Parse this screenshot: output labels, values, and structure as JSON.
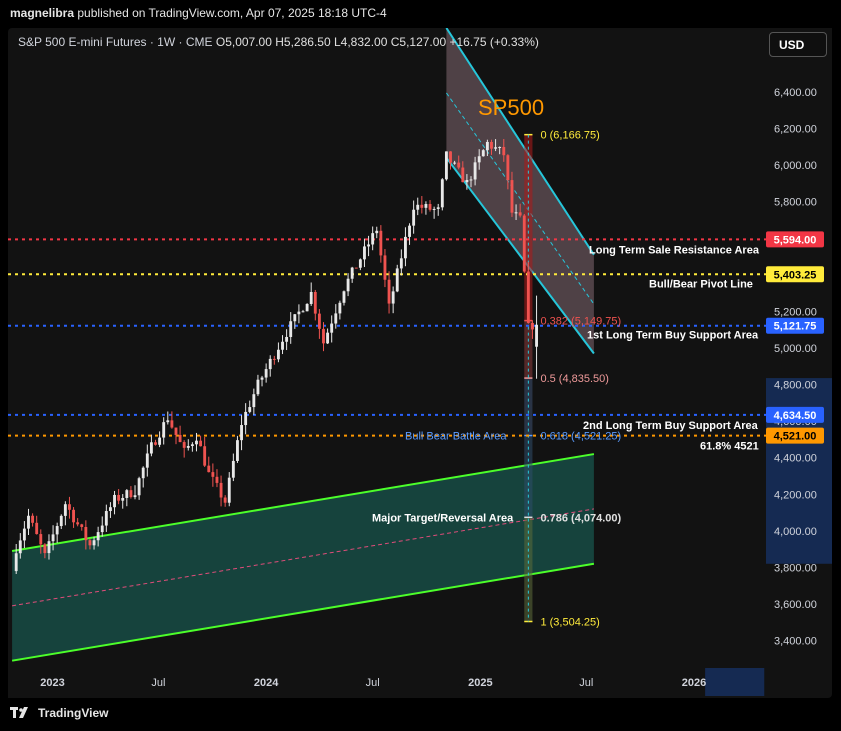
{
  "header": {
    "publisher": "magnelibra",
    "published_text": "published on TradingView.com, Apr 07, 2025 18:18 UTC-4"
  },
  "symbol_line": {
    "name": "S&P 500 E-mini Futures · 1W · CME",
    "o_label": "O",
    "o_value": "5,007.00",
    "h_label": "H",
    "h_value": "5,286.50",
    "l_label": "L",
    "l_value": "4,832.00",
    "c_label": "C",
    "c_value": "5,127.00",
    "change": "+16.75 (+0.33%)"
  },
  "currency_button": "USD",
  "footer": {
    "brand": "TradingView"
  },
  "colors": {
    "up": "#e8e8e8",
    "down": "#ef5350",
    "channel": "#26c6da",
    "green_line": "#4cff2a",
    "red_level": "#f23645",
    "yellow_level": "#ffeb3b",
    "blue_level": "#2962ff",
    "orange_level": "#ff9800",
    "title": "#ff9800"
  },
  "chart_data": {
    "type": "candlestick",
    "title": "SP500",
    "interval": "1W",
    "y_axis": {
      "range": [
        3250,
        6750
      ],
      "ticks": [
        "3,400.00",
        "3,600.00",
        "3,800.00",
        "4,000.00",
        "4,200.00",
        "4,400.00",
        "4,600.00",
        "4,800.00",
        "5,000.00",
        "5,200.00",
        "5,400.00",
        "5,600.00",
        "5,800.00",
        "6,000.00",
        "6,200.00",
        "6,400.00"
      ],
      "tick_values": [
        3400,
        3600,
        3800,
        4000,
        4200,
        4400,
        4600,
        4800,
        5000,
        5200,
        5400,
        5600,
        5800,
        6000,
        6200,
        6400
      ],
      "position": "right"
    },
    "x_axis": {
      "range": [
        "2022-10-17",
        "2026-05-04"
      ],
      "ticks": [
        "2023",
        "Jul",
        "2024",
        "Jul",
        "2025",
        "Jul",
        "2026"
      ],
      "tick_dates": [
        "2023-01-01",
        "2023-07-01",
        "2024-01-01",
        "2024-07-01",
        "2025-01-01",
        "2025-07-01",
        "2026-01-01"
      ]
    },
    "ohlc_last": {
      "open": 5007.0,
      "high": 5286.5,
      "low": 4832.0,
      "close": 5127.0,
      "change": 16.75,
      "change_pct": 0.33
    },
    "close_path": [
      {
        "date": "2022-10-31",
        "close": 3850
      },
      {
        "date": "2022-11-28",
        "close": 4080
      },
      {
        "date": "2022-12-26",
        "close": 3860
      },
      {
        "date": "2023-01-30",
        "close": 4150
      },
      {
        "date": "2023-03-13",
        "close": 3920
      },
      {
        "date": "2023-04-24",
        "close": 4170
      },
      {
        "date": "2023-05-29",
        "close": 4220
      },
      {
        "date": "2023-06-26",
        "close": 4460
      },
      {
        "date": "2023-07-24",
        "close": 4620
      },
      {
        "date": "2023-08-21",
        "close": 4430
      },
      {
        "date": "2023-09-11",
        "close": 4520
      },
      {
        "date": "2023-10-02",
        "close": 4310
      },
      {
        "date": "2023-10-30",
        "close": 4160
      },
      {
        "date": "2023-11-27",
        "close": 4590
      },
      {
        "date": "2023-12-25",
        "close": 4800
      },
      {
        "date": "2024-02-05",
        "close": 5050
      },
      {
        "date": "2024-03-25",
        "close": 5300
      },
      {
        "date": "2024-04-15",
        "close": 5030
      },
      {
        "date": "2024-05-20",
        "close": 5330
      },
      {
        "date": "2024-07-15",
        "close": 5650
      },
      {
        "date": "2024-08-05",
        "close": 5220
      },
      {
        "date": "2024-09-16",
        "close": 5780
      },
      {
        "date": "2024-10-28",
        "close": 5750
      },
      {
        "date": "2024-11-11",
        "close": 6050
      },
      {
        "date": "2024-12-16",
        "close": 5900
      },
      {
        "date": "2025-01-20",
        "close": 6120
      },
      {
        "date": "2025-02-17",
        "close": 6060
      },
      {
        "date": "2025-03-03",
        "close": 5740
      },
      {
        "date": "2025-03-17",
        "close": 5700
      },
      {
        "date": "2025-03-31",
        "close": 5110
      },
      {
        "date": "2025-04-07",
        "close": 5127
      }
    ],
    "fib_retracement": [
      {
        "level": "0",
        "value": 6166.75,
        "label": "0 (6,166.75)"
      },
      {
        "level": "0.382",
        "value": 5149.75,
        "label": "0.382 (5,149.75)"
      },
      {
        "level": "0.5",
        "value": 4835.5,
        "label": "0.5 (4,835.50)"
      },
      {
        "level": "0.618",
        "value": 4521.25,
        "label": "0.618 (4,521.25)"
      },
      {
        "level": "0.786",
        "value": 4074.0,
        "label": "0.786 (4,074.00)"
      },
      {
        "level": "1",
        "value": 3504.25,
        "label": "1 (3,504.25)"
      }
    ],
    "horizontal_levels": [
      {
        "name": "Long Term Sale Resistance Area",
        "value": 5594.0,
        "axis_label": "5,594.00",
        "color": "#f23645"
      },
      {
        "name": "Bull/Bear Pivot Line",
        "value": 5403.25,
        "axis_label": "5,403.25",
        "color": "#ffeb3b"
      },
      {
        "name": "1st Long Term Buy Support Area",
        "value": 5121.75,
        "axis_label": "5,121.75",
        "color": "#2962ff"
      },
      {
        "name": "2nd Long Term Buy Support Area",
        "value": 4634.5,
        "axis_label": "4,634.50",
        "color": "#2962ff"
      },
      {
        "name": "61.8% 4521",
        "value": 4521.0,
        "axis_label": "4,521.00",
        "color": "#ff9800"
      }
    ],
    "annotations": [
      "Bull Bear Battle Area",
      "Major Target/Reversal Area"
    ],
    "channels": [
      {
        "name": "descending",
        "color": "#26c6da",
        "upper": [
          [
            "2024-11-04",
            6750
          ],
          [
            "2025-07-14",
            5510
          ]
        ],
        "lower": [
          [
            "2024-11-04",
            6040
          ],
          [
            "2025-07-14",
            4970
          ]
        ]
      },
      {
        "name": "ascending",
        "color": "#4cff2a",
        "upper": [
          [
            "2022-10-24",
            3890
          ],
          [
            "2025-07-14",
            4420
          ]
        ],
        "lower": [
          [
            "2022-10-24",
            3290
          ],
          [
            "2025-07-14",
            3820
          ]
        ]
      }
    ]
  }
}
